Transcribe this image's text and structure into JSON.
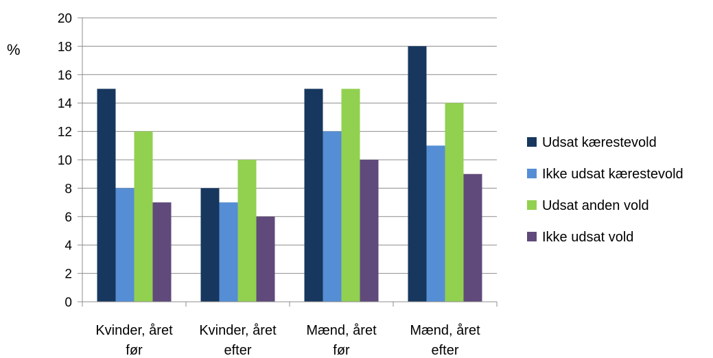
{
  "chart_data": {
    "type": "bar",
    "title": "",
    "xlabel": "",
    "ylabel": "%",
    "ylim": [
      0,
      20
    ],
    "yticks": [
      0,
      2,
      4,
      6,
      8,
      10,
      12,
      14,
      16,
      18,
      20
    ],
    "grid": true,
    "legend_position": "right",
    "categories": [
      [
        "Kvinder, året",
        "før"
      ],
      [
        "Kvinder, året",
        "efter"
      ],
      [
        "Mænd, året",
        "før"
      ],
      [
        "Mænd, året",
        "efter"
      ]
    ],
    "series": [
      {
        "name": "Udsat kærestevold",
        "color": "#17375e",
        "values": [
          15,
          8,
          15,
          18
        ]
      },
      {
        "name": "Ikke udsat kærestevold",
        "color": "#558ed5",
        "values": [
          8,
          7,
          12,
          11
        ]
      },
      {
        "name": "Udsat anden vold",
        "color": "#92d050",
        "values": [
          12,
          10,
          15,
          14
        ]
      },
      {
        "name": "Ikke udsat vold",
        "color": "#604a7b",
        "values": [
          7,
          6,
          10,
          9
        ]
      }
    ]
  }
}
